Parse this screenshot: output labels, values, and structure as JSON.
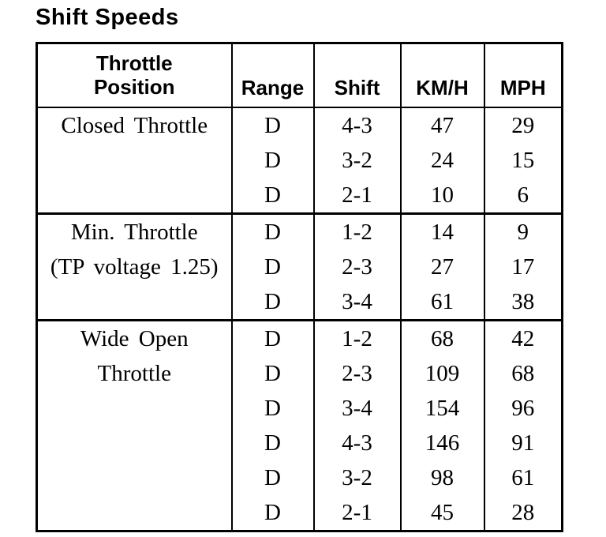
{
  "page": {
    "title": "Shift Speeds",
    "background_color": "#ffffff",
    "text_color": "#000000",
    "border_color": "#000000"
  },
  "table": {
    "headers": [
      {
        "id": "throttle-position",
        "lines": [
          "Throttle",
          "Position"
        ]
      },
      {
        "id": "range",
        "lines": [
          "Range"
        ]
      },
      {
        "id": "shift",
        "lines": [
          "Shift"
        ]
      },
      {
        "id": "kmh",
        "lines": [
          "KM/H"
        ]
      },
      {
        "id": "mph",
        "lines": [
          "MPH"
        ]
      }
    ],
    "groups": [
      {
        "label_lines": [
          "Closed Throttle"
        ],
        "rows": [
          {
            "range": "D",
            "shift": "4-3",
            "kmh": "47",
            "mph": "29"
          },
          {
            "range": "D",
            "shift": "3-2",
            "kmh": "24",
            "mph": "15"
          },
          {
            "range": "D",
            "shift": "2-1",
            "kmh": "10",
            "mph": "6"
          }
        ]
      },
      {
        "label_lines": [
          "Min. Throttle",
          "(TP voltage 1.25)"
        ],
        "rows": [
          {
            "range": "D",
            "shift": "1-2",
            "kmh": "14",
            "mph": "9"
          },
          {
            "range": "D",
            "shift": "2-3",
            "kmh": "27",
            "mph": "17"
          },
          {
            "range": "D",
            "shift": "3-4",
            "kmh": "61",
            "mph": "38"
          }
        ]
      },
      {
        "label_lines": [
          "Wide Open",
          "Throttle"
        ],
        "rows": [
          {
            "range": "D",
            "shift": "1-2",
            "kmh": "68",
            "mph": "42"
          },
          {
            "range": "D",
            "shift": "2-3",
            "kmh": "109",
            "mph": "68"
          },
          {
            "range": "D",
            "shift": "3-4",
            "kmh": "154",
            "mph": "96"
          },
          {
            "range": "D",
            "shift": "4-3",
            "kmh": "146",
            "mph": "91"
          },
          {
            "range": "D",
            "shift": "3-2",
            "kmh": "98",
            "mph": "61"
          },
          {
            "range": "D",
            "shift": "2-1",
            "kmh": "45",
            "mph": "28"
          }
        ]
      }
    ]
  }
}
